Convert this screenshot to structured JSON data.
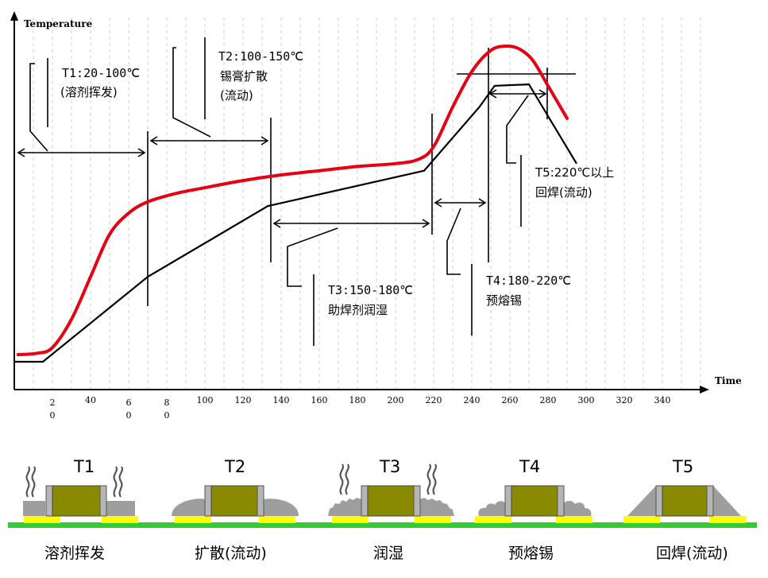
{
  "chart_data": {
    "type": "line",
    "ylabel": "Temperature",
    "xlabel": "Time",
    "x_ticks": [
      {
        "v": 20,
        "label": "2\n0"
      },
      {
        "v": 40,
        "label": "40"
      },
      {
        "v": 60,
        "label": "6\n0"
      },
      {
        "v": 80,
        "label": "8\n0"
      },
      {
        "v": 100,
        "label": "100"
      },
      {
        "v": 120,
        "label": "120"
      },
      {
        "v": 140,
        "label": "140"
      },
      {
        "v": 160,
        "label": "160"
      },
      {
        "v": 180,
        "label": "180"
      },
      {
        "v": 200,
        "label": "200"
      },
      {
        "v": 220,
        "label": "220"
      },
      {
        "v": 240,
        "label": "240"
      },
      {
        "v": 260,
        "label": "260"
      },
      {
        "v": 280,
        "label": "280"
      },
      {
        "v": 300,
        "label": "300"
      },
      {
        "v": 320,
        "label": "320"
      },
      {
        "v": 340,
        "label": "340"
      }
    ],
    "series": [
      {
        "color": "#000000",
        "x": [
          0,
          15,
          70,
          133,
          215,
          244,
          252,
          270,
          295
        ],
        "y": [
          0,
          0,
          6,
          11,
          13.5,
          18,
          19.5,
          19.6,
          14
        ]
      },
      {
        "color": "#e60012",
        "x": [
          2,
          12,
          20,
          30,
          40,
          50,
          60,
          70,
          85,
          100,
          120,
          140,
          160,
          180,
          200,
          212,
          220,
          230,
          240,
          250,
          258,
          265,
          272,
          280,
          290
        ],
        "y": [
          0.5,
          0.6,
          1,
          3,
          6,
          9,
          10.5,
          11.3,
          11.9,
          12.3,
          12.8,
          13.2,
          13.5,
          13.8,
          14,
          14.3,
          15.2,
          18,
          20.5,
          22,
          22.3,
          22.1,
          21.3,
          19.5,
          17.2
        ]
      }
    ],
    "phases": [
      {
        "name": "T1",
        "text": [
          "T1:20-100℃",
          "(溶剂挥发)"
        ]
      },
      {
        "name": "T2",
        "text": [
          "T2:100-150℃",
          "锡膏扩散",
          "(流动)"
        ]
      },
      {
        "name": "T3",
        "text": [
          "T3:150-180℃",
          "助焊剂润湿"
        ]
      },
      {
        "name": "T4",
        "text": [
          "T4:180-220℃",
          "预熔锡"
        ]
      },
      {
        "name": "T5",
        "text": [
          "T5:220℃以上",
          "回焊(流动)"
        ]
      }
    ]
  },
  "stages": [
    {
      "title": "T1",
      "label": "溶剂挥发"
    },
    {
      "title": "T2",
      "label": "扩散(流动)"
    },
    {
      "title": "T3",
      "label": "润湿"
    },
    {
      "title": "T4",
      "label": "预熔锡"
    },
    {
      "title": "T5",
      "label": "回焊(流动)"
    }
  ],
  "colors": {
    "red_curve": "#e60012",
    "component_body": "#8a8a00",
    "pad": "#ffff00",
    "board": "#33cc33",
    "terminal": "#999999"
  }
}
